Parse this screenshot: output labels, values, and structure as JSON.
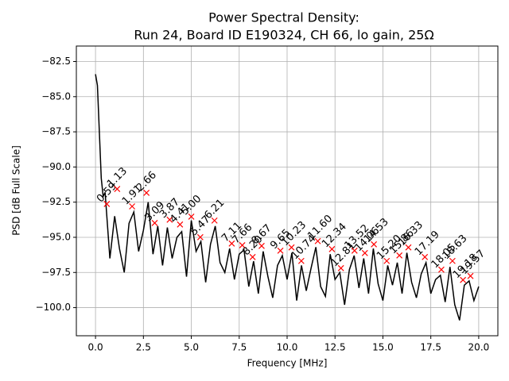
{
  "chart_data": {
    "type": "line",
    "title": "Power Spectral Density:",
    "subtitle": "Run 24, Board ID E190324, CH 66, lo gain, 25Ω",
    "x_label": "Frequency [MHz]",
    "y_label": "PSD [dB Full Scale]",
    "xlim": [
      -1.0,
      21.0
    ],
    "ylim": [
      -102.0,
      -81.4
    ],
    "xticks": [
      {
        "value": 0,
        "label": "0.0"
      },
      2.5,
      {
        "value": 5,
        "label": "5.0"
      },
      7.5,
      {
        "value": 10,
        "label": "10.0"
      },
      12.5,
      {
        "value": 15,
        "label": "15.0"
      },
      17.5,
      {
        "value": 20,
        "label": "20.0"
      }
    ],
    "yticks": [
      {
        "value": -82.5,
        "label": "−82.5"
      },
      {
        "value": -85,
        "label": "−85.0"
      },
      {
        "value": -87.5,
        "label": "−87.5"
      },
      {
        "value": -90,
        "label": "−90.0"
      },
      {
        "value": -92.5,
        "label": "−92.5"
      },
      {
        "value": -95,
        "label": "−95.0"
      },
      {
        "value": -97.5,
        "label": "−97.5"
      },
      {
        "value": -100,
        "label": "−100.0"
      }
    ],
    "grid": true,
    "x": [
      0,
      0.1,
      0.2,
      0.3,
      0.4,
      0.5,
      0.75,
      1.0,
      1.25,
      1.5,
      1.75,
      2.0,
      2.25,
      2.5,
      2.75,
      3.0,
      3.25,
      3.5,
      3.75,
      4.0,
      4.25,
      4.5,
      4.75,
      5.0,
      5.25,
      5.5,
      5.75,
      6.0,
      6.25,
      6.5,
      6.75,
      7.0,
      7.25,
      7.5,
      7.75,
      8.0,
      8.25,
      8.5,
      8.75,
      9.0,
      9.25,
      9.5,
      9.75,
      10.0,
      10.25,
      10.5,
      10.75,
      11.0,
      11.25,
      11.5,
      11.75,
      12.0,
      12.25,
      12.5,
      12.75,
      13.0,
      13.25,
      13.5,
      13.75,
      14.0,
      14.25,
      14.5,
      14.75,
      15.0,
      15.25,
      15.5,
      15.75,
      16.0,
      16.25,
      16.5,
      16.75,
      17.0,
      17.25,
      17.5,
      17.75,
      18.0,
      18.25,
      18.5,
      18.75,
      19.0,
      19.25,
      19.5,
      19.75,
      20.0
    ],
    "series": [
      {
        "color": "#000000",
        "values": [
          -83.4,
          -84.2,
          -87.5,
          -90.8,
          -92.1,
          -91.8,
          -96.5,
          -93.5,
          -95.8,
          -97.5,
          -94.0,
          -93.2,
          -96.0,
          -94.5,
          -92.5,
          -96.2,
          -94.2,
          -97.0,
          -94.3,
          -96.5,
          -95.0,
          -94.6,
          -97.8,
          -93.8,
          -96.0,
          -95.3,
          -98.2,
          -95.5,
          -94.2,
          -96.8,
          -97.5,
          -95.8,
          -98.0,
          -96.2,
          -95.9,
          -98.5,
          -96.7,
          -99.0,
          -96.0,
          -97.8,
          -99.3,
          -97.0,
          -96.3,
          -98.0,
          -96.1,
          -99.5,
          -97.0,
          -98.8,
          -97.2,
          -95.7,
          -98.5,
          -99.2,
          -96.2,
          -98.0,
          -97.5,
          -99.8,
          -97.3,
          -96.3,
          -98.6,
          -96.5,
          -99.0,
          -95.8,
          -98.3,
          -99.5,
          -97.0,
          -98.4,
          -96.8,
          -99.0,
          -96.1,
          -98.2,
          -99.3,
          -97.6,
          -96.8,
          -99.0,
          -98.0,
          -97.7,
          -99.6,
          -97.1,
          -99.8,
          -100.9,
          -98.4,
          -98.1,
          -99.5,
          -98.5
        ]
      }
    ],
    "markers": {
      "color": "#ff0000",
      "x": [
        0.59,
        1.13,
        1.91,
        2.66,
        3.09,
        3.87,
        4.41,
        5.0,
        5.47,
        6.21,
        7.11,
        7.66,
        8.2,
        8.67,
        9.65,
        10.23,
        10.74,
        11.6,
        12.34,
        12.81,
        13.52,
        14.06,
        14.53,
        15.2,
        15.86,
        16.33,
        17.19,
        18.05,
        18.63,
        19.18,
        19.57
      ],
      "values": [
        -92.63,
        -91.56,
        -92.8,
        -91.84,
        -93.98,
        -93.75,
        -94.09,
        -93.53,
        -94.99,
        -93.81,
        -95.44,
        -95.56,
        -96.4,
        -95.61,
        -95.95,
        -95.72,
        -96.68,
        -95.27,
        -95.84,
        -97.19,
        -95.95,
        -96.12,
        -95.5,
        -96.68,
        -96.29,
        -95.72,
        -96.4,
        -97.3,
        -96.68,
        -98.03,
        -97.75
      ],
      "labels": [
        "0.59",
        "1.13",
        "1.91",
        "2.66",
        "3.09",
        "3.87",
        "4.41",
        "5.00",
        "5.47",
        "6.21",
        "7.11",
        "7.66",
        "8.20",
        "8.67",
        "9.65",
        "10.23",
        "10.74",
        "11.60",
        "12.34",
        "12.81",
        "13.52",
        "14.06",
        "14.53",
        "15.20",
        "15.86",
        "16.33",
        "17.19",
        "18.05",
        "18.63",
        "19.18",
        "19.57"
      ]
    }
  }
}
